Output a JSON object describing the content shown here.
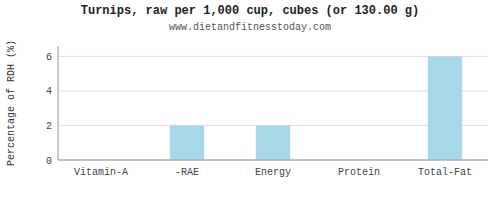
{
  "chart_data": {
    "type": "bar",
    "title": "Turnips, raw per 1,000 cup, cubes (or 130.00 g)",
    "subtitle": "www.dietandfitnesstoday.com",
    "categories": [
      "Vitamin-A",
      "-RAE",
      "Energy",
      "Protein",
      "Total-Fat"
    ],
    "values": [
      0,
      2,
      2,
      0,
      6
    ],
    "color": "#a8d8e8",
    "ylabel": "Percentage of RDH (%)",
    "ylim": [
      0,
      6.6
    ],
    "yticks": [
      0,
      2,
      4,
      6
    ],
    "grid": true
  }
}
